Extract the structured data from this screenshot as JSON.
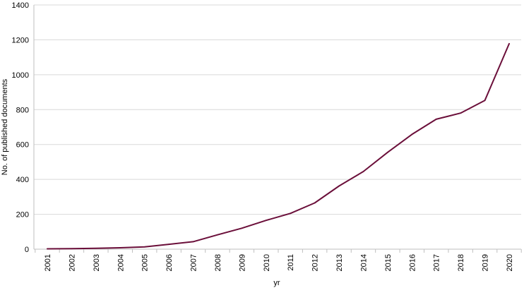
{
  "chart_data": {
    "type": "line",
    "title": "",
    "xlabel": "yr",
    "ylabel": "No. of published documents",
    "x": [
      "2001",
      "2002",
      "2003",
      "2004",
      "2005",
      "2006",
      "2007",
      "2008",
      "2009",
      "2010",
      "2011",
      "2012",
      "2013",
      "2014",
      "2015",
      "2016",
      "2017",
      "2018",
      "2019",
      "2020"
    ],
    "series": [
      {
        "values": [
          2,
          3,
          5,
          8,
          13,
          28,
          43,
          82,
          120,
          165,
          205,
          265,
          362,
          445,
          555,
          658,
          745,
          780,
          853,
          1178
        ],
        "color": "#6b0f3a"
      }
    ],
    "ylim": [
      0,
      1400
    ],
    "yticks": [
      0,
      200,
      400,
      600,
      800,
      1000,
      1200,
      1400
    ],
    "grid": "horizontal",
    "legend": "none"
  }
}
